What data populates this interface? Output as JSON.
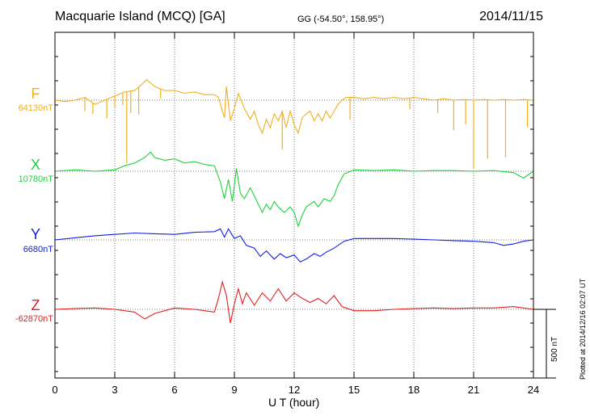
{
  "header": {
    "title": "Macquarie Island (MCQ)  [GA]",
    "coords": "GG (-54.50°, 158.95°)",
    "date": "2014/11/15"
  },
  "footer": {
    "plotted": "Plotted at 2014/12/16 02:07 UT",
    "scale_label": "500 nT"
  },
  "chart_data": {
    "type": "line",
    "xlabel": "U T (hour)",
    "xlim": [
      0,
      24
    ],
    "xticks": [
      0,
      3,
      6,
      9,
      12,
      15,
      18,
      21,
      24
    ],
    "grid": true,
    "scale_bar_nT": 500,
    "series": [
      {
        "name": "F",
        "baseline": "64130nT",
        "color": "#f0b020",
        "points": [
          [
            0,
            0
          ],
          [
            0.5,
            10
          ],
          [
            1,
            0
          ],
          [
            1.5,
            -20
          ],
          [
            2,
            30
          ],
          [
            2.5,
            0
          ],
          [
            3,
            -30
          ],
          [
            3.5,
            -60
          ],
          [
            4,
            -70
          ],
          [
            4.4,
            -120
          ],
          [
            4.6,
            -150
          ],
          [
            5,
            -100
          ],
          [
            5.5,
            -70
          ],
          [
            6,
            -70
          ],
          [
            6.5,
            -50
          ],
          [
            7,
            -60
          ],
          [
            7.5,
            -40
          ],
          [
            8,
            -40
          ],
          [
            8.2,
            -20
          ],
          [
            8.4,
            80
          ],
          [
            8.5,
            130
          ],
          [
            8.6,
            -100
          ],
          [
            8.8,
            150
          ],
          [
            9,
            60
          ],
          [
            9.2,
            -50
          ],
          [
            9.5,
            60
          ],
          [
            9.8,
            140
          ],
          [
            10,
            80
          ],
          [
            10.2,
            180
          ],
          [
            10.4,
            240
          ],
          [
            10.6,
            140
          ],
          [
            10.8,
            200
          ],
          [
            11,
            100
          ],
          [
            11.2,
            150
          ],
          [
            11.4,
            80
          ],
          [
            11.6,
            200
          ],
          [
            11.8,
            80
          ],
          [
            12,
            180
          ],
          [
            12.2,
            240
          ],
          [
            12.4,
            130
          ],
          [
            12.6,
            100
          ],
          [
            12.8,
            80
          ],
          [
            13,
            150
          ],
          [
            13.2,
            100
          ],
          [
            13.4,
            150
          ],
          [
            13.6,
            80
          ],
          [
            13.8,
            130
          ],
          [
            14,
            80
          ],
          [
            14.2,
            30
          ],
          [
            14.4,
            0
          ],
          [
            14.6,
            -20
          ],
          [
            15,
            -20
          ],
          [
            15.5,
            -10
          ],
          [
            16,
            -20
          ],
          [
            16.5,
            -10
          ],
          [
            17,
            -20
          ],
          [
            17.5,
            -10
          ],
          [
            18,
            -20
          ],
          [
            18.5,
            -10
          ],
          [
            19,
            0
          ],
          [
            19.5,
            -10
          ],
          [
            20,
            0
          ],
          [
            20.5,
            -5
          ],
          [
            21,
            0
          ],
          [
            21.5,
            -5
          ],
          [
            22,
            0
          ],
          [
            22.5,
            -5
          ],
          [
            23,
            0
          ],
          [
            23.5,
            -5
          ],
          [
            24,
            0
          ]
        ],
        "spikes": [
          [
            1.5,
            100
          ],
          [
            1.9,
            80
          ],
          [
            2.6,
            140
          ],
          [
            3.0,
            80
          ],
          [
            3.4,
            90
          ],
          [
            3.6,
            520
          ],
          [
            3.8,
            160
          ],
          [
            4.2,
            200
          ],
          [
            5.3,
            70
          ],
          [
            11.4,
            280
          ],
          [
            14.8,
            160
          ],
          [
            17.8,
            80
          ],
          [
            19.2,
            100
          ],
          [
            20.0,
            220
          ],
          [
            20.6,
            180
          ],
          [
            21.0,
            500
          ],
          [
            21.7,
            430
          ],
          [
            22.6,
            420
          ],
          [
            23.7,
            200
          ]
        ]
      },
      {
        "name": "X",
        "baseline": "10780nT",
        "color": "#20d040",
        "points": [
          [
            0,
            0
          ],
          [
            1,
            -10
          ],
          [
            2,
            0
          ],
          [
            3,
            -10
          ],
          [
            3.5,
            -40
          ],
          [
            4,
            -60
          ],
          [
            4.5,
            -100
          ],
          [
            4.8,
            -140
          ],
          [
            5,
            -100
          ],
          [
            5.5,
            -80
          ],
          [
            6,
            -90
          ],
          [
            6.5,
            -60
          ],
          [
            7,
            -70
          ],
          [
            7.5,
            -50
          ],
          [
            8,
            -40
          ],
          [
            8.3,
            80
          ],
          [
            8.5,
            200
          ],
          [
            8.7,
            60
          ],
          [
            8.9,
            220
          ],
          [
            9.1,
            -20
          ],
          [
            9.3,
            160
          ],
          [
            9.5,
            200
          ],
          [
            9.8,
            120
          ],
          [
            10,
            180
          ],
          [
            10.2,
            240
          ],
          [
            10.4,
            300
          ],
          [
            10.6,
            240
          ],
          [
            10.8,
            280
          ],
          [
            11,
            220
          ],
          [
            11.2,
            260
          ],
          [
            11.5,
            300
          ],
          [
            11.8,
            260
          ],
          [
            12,
            300
          ],
          [
            12.2,
            400
          ],
          [
            12.4,
            320
          ],
          [
            12.6,
            260
          ],
          [
            12.8,
            240
          ],
          [
            13,
            220
          ],
          [
            13.2,
            260
          ],
          [
            13.5,
            200
          ],
          [
            13.8,
            220
          ],
          [
            14,
            180
          ],
          [
            14.2,
            100
          ],
          [
            14.5,
            20
          ],
          [
            15,
            -10
          ],
          [
            16,
            -5
          ],
          [
            17,
            -10
          ],
          [
            18,
            0
          ],
          [
            19,
            -5
          ],
          [
            20,
            -5
          ],
          [
            21,
            0
          ],
          [
            22,
            -5
          ],
          [
            23,
            10
          ],
          [
            23.5,
            50
          ],
          [
            24,
            0
          ]
        ]
      },
      {
        "name": "Y",
        "baseline": "6680nT",
        "color": "#1020e0",
        "points": [
          [
            0,
            0
          ],
          [
            1,
            -15
          ],
          [
            2,
            -30
          ],
          [
            3,
            -40
          ],
          [
            4,
            -50
          ],
          [
            5,
            -45
          ],
          [
            6,
            -40
          ],
          [
            7,
            -55
          ],
          [
            8,
            -60
          ],
          [
            8.3,
            -80
          ],
          [
            8.5,
            -20
          ],
          [
            8.7,
            -80
          ],
          [
            9,
            -10
          ],
          [
            9.3,
            -30
          ],
          [
            9.6,
            40
          ],
          [
            10,
            60
          ],
          [
            10.3,
            120
          ],
          [
            10.6,
            80
          ],
          [
            11,
            140
          ],
          [
            11.3,
            100
          ],
          [
            11.6,
            130
          ],
          [
            12,
            110
          ],
          [
            12.3,
            160
          ],
          [
            12.6,
            140
          ],
          [
            13,
            100
          ],
          [
            13.3,
            120
          ],
          [
            13.6,
            90
          ],
          [
            14,
            60
          ],
          [
            14.5,
            10
          ],
          [
            15,
            -10
          ],
          [
            16,
            -10
          ],
          [
            17,
            -10
          ],
          [
            18,
            -5
          ],
          [
            19,
            0
          ],
          [
            20,
            5
          ],
          [
            21,
            10
          ],
          [
            22,
            20
          ],
          [
            22.5,
            40
          ],
          [
            23,
            30
          ],
          [
            23.5,
            10
          ],
          [
            24,
            0
          ]
        ]
      },
      {
        "name": "Z",
        "baseline": "-62870nT",
        "color": "#e02020",
        "points": [
          [
            0,
            0
          ],
          [
            1,
            -5
          ],
          [
            2,
            -10
          ],
          [
            3,
            0
          ],
          [
            4,
            20
          ],
          [
            4.5,
            70
          ],
          [
            5,
            30
          ],
          [
            6,
            -10
          ],
          [
            7,
            0
          ],
          [
            8,
            20
          ],
          [
            8.2,
            -80
          ],
          [
            8.4,
            -200
          ],
          [
            8.6,
            -100
          ],
          [
            8.8,
            100
          ],
          [
            9,
            -40
          ],
          [
            9.2,
            -150
          ],
          [
            9.4,
            -40
          ],
          [
            9.6,
            -120
          ],
          [
            10,
            -30
          ],
          [
            10.4,
            -120
          ],
          [
            10.8,
            -60
          ],
          [
            11.2,
            -150
          ],
          [
            11.6,
            -60
          ],
          [
            12,
            -120
          ],
          [
            12.4,
            -80
          ],
          [
            12.8,
            -50
          ],
          [
            13.2,
            -80
          ],
          [
            13.6,
            -40
          ],
          [
            14,
            -100
          ],
          [
            14.4,
            -20
          ],
          [
            15,
            10
          ],
          [
            16,
            10
          ],
          [
            17,
            0
          ],
          [
            18,
            -5
          ],
          [
            19,
            -10
          ],
          [
            20,
            -5
          ],
          [
            21,
            -10
          ],
          [
            22,
            -10
          ],
          [
            23,
            -20
          ],
          [
            24,
            0
          ]
        ]
      }
    ]
  }
}
